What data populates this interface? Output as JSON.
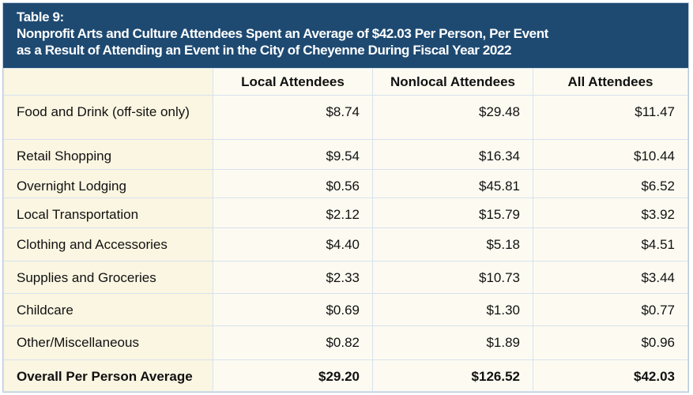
{
  "title": {
    "line1": "Table 9:",
    "line2": "Nonprofit Arts and Culture Attendees Spent an Average of $42.03 Per Person, Per Event",
    "line3": "as a Result of Attending an Event in the City of Cheyenne During Fiscal Year 2022"
  },
  "columns": [
    "",
    "Local Attendees",
    "Nonlocal Attendees",
    "All Attendees"
  ],
  "rows": [
    {
      "label": "Food and Drink (off-site only)",
      "local": "$8.74",
      "nonlocal": "$29.48",
      "all": "$11.47"
    },
    {
      "label": "Retail Shopping",
      "local": "$9.54",
      "nonlocal": "$16.34",
      "all": "$10.44"
    },
    {
      "label": "Overnight Lodging",
      "local": "$0.56",
      "nonlocal": "$45.81",
      "all": "$6.52"
    },
    {
      "label": "Local Transportation",
      "local": "$2.12",
      "nonlocal": "$15.79",
      "all": "$3.92"
    },
    {
      "label": "Clothing and Accessories",
      "local": "$4.40",
      "nonlocal": "$5.18",
      "all": "$4.51"
    },
    {
      "label": "Supplies and Groceries",
      "local": "$2.33",
      "nonlocal": "$10.73",
      "all": "$3.44"
    },
    {
      "label": "Childcare",
      "local": "$0.69",
      "nonlocal": "$1.30",
      "all": "$0.77"
    },
    {
      "label": "Other/Miscellaneous",
      "local": "$0.82",
      "nonlocal": "$1.89",
      "all": "$0.96"
    }
  ],
  "total": {
    "label": "Overall Per Person Average",
    "local": "$29.20",
    "nonlocal": "$126.52",
    "all": "$42.03"
  },
  "colors": {
    "header": "#1e4a72",
    "label_bg": "#fbf6e2",
    "cell_bg": "#fdfbf1"
  }
}
